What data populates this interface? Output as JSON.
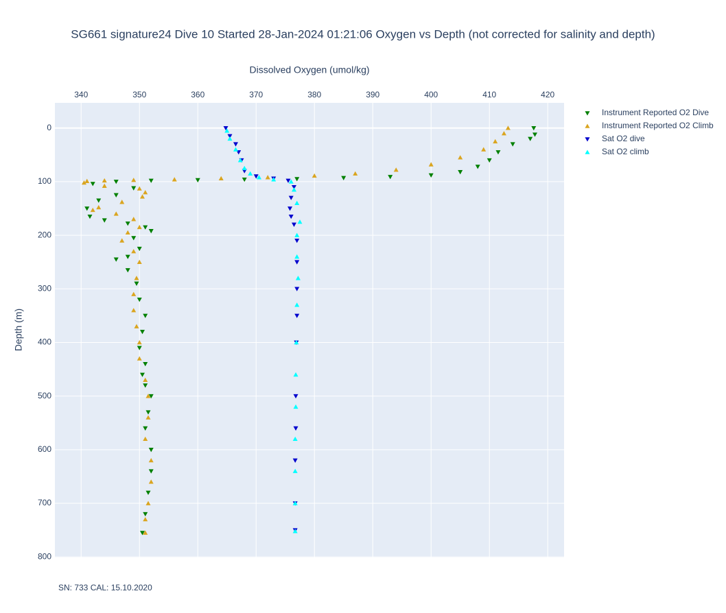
{
  "chart_data": {
    "type": "scatter",
    "title": "SG661 signature24 Dive 10 Started 28-Jan-2024 01:21:06  Oxygen vs Depth (not corrected for salinity and depth)",
    "x_label": "Dissolved Oxygen (umol/kg)",
    "y_label": "Depth (m)",
    "annotation": "SN: 733  CAL: 15.10.2020",
    "xlim": [
      335.5,
      422.8
    ],
    "ylim": [
      -47,
      801
    ],
    "y_reversed": true,
    "x_axis_side": "top",
    "xticks": [
      340,
      350,
      360,
      370,
      380,
      390,
      400,
      410,
      420
    ],
    "yticks": [
      0,
      100,
      200,
      300,
      400,
      500,
      600,
      700,
      800
    ],
    "grid": true,
    "legend_position": "right",
    "series": [
      {
        "name": "Instrument Reported O2 Dive",
        "color": "#008000",
        "marker": "triangle-down",
        "x": [
          417.6,
          417.8,
          417,
          414,
          411.5,
          410,
          408,
          405,
          400,
          393,
          385,
          377,
          368,
          360,
          352,
          346,
          342,
          349,
          346,
          343,
          341,
          341.5,
          344,
          348,
          351,
          352,
          349,
          350,
          348,
          346,
          348,
          349.5,
          350,
          351,
          350.5,
          350,
          351,
          350.5,
          351,
          352,
          351.5,
          351,
          352,
          352,
          351.5,
          351,
          350.5
        ],
        "y": [
          0,
          12,
          20,
          30,
          45,
          60,
          72,
          82,
          88,
          91,
          93,
          95,
          96,
          97,
          98,
          100,
          104,
          112,
          125,
          135,
          150,
          165,
          172,
          178,
          185,
          192,
          205,
          225,
          240,
          245,
          265,
          290,
          320,
          350,
          380,
          410,
          440,
          460,
          480,
          500,
          530,
          560,
          600,
          640,
          680,
          720,
          755
        ]
      },
      {
        "name": "Instrument Reported O2 Climb",
        "color": "#daa520",
        "marker": "triangle-up",
        "x": [
          413.2,
          412.5,
          411,
          409,
          405,
          400,
          394,
          387,
          380,
          372,
          364,
          356,
          349,
          344,
          341,
          340.5,
          344,
          350,
          351,
          350.5,
          347,
          343,
          342,
          346,
          349,
          350,
          348,
          347,
          349,
          350,
          349.5,
          349,
          349,
          349.5,
          350,
          350,
          351,
          351.5,
          351.5,
          351,
          352,
          352,
          351.5,
          351,
          351
        ],
        "y": [
          0,
          10,
          25,
          40,
          55,
          68,
          78,
          85,
          89,
          92,
          94,
          96,
          97,
          98,
          99,
          102,
          108,
          113,
          120,
          128,
          138,
          148,
          153,
          160,
          170,
          185,
          195,
          210,
          230,
          250,
          280,
          310,
          340,
          370,
          400,
          430,
          470,
          500,
          540,
          580,
          620,
          660,
          700,
          730,
          755
        ]
      },
      {
        "name": "Sat O2 dive",
        "color": "#0000cd",
        "marker": "triangle-down",
        "x": [
          364.8,
          365.5,
          366.5,
          367,
          367.5,
          368,
          370,
          373,
          375.5,
          376.5,
          376,
          375.8,
          376,
          376.5,
          377,
          377,
          377,
          377,
          376.9,
          376.8,
          376.8,
          376.7,
          376.7,
          376.7
        ],
        "y": [
          0,
          15,
          30,
          45,
          60,
          80,
          90,
          94,
          98,
          110,
          130,
          150,
          165,
          180,
          210,
          250,
          300,
          350,
          400,
          500,
          560,
          620,
          700,
          750
        ]
      },
      {
        "name": "Sat O2 climb",
        "color": "#00ffff",
        "marker": "triangle-up",
        "x": [
          365,
          365.5,
          366.5,
          367.3,
          368,
          369,
          370.5,
          373,
          376,
          376.5,
          377,
          377.5,
          377,
          377,
          377.2,
          377,
          376.9,
          376.8,
          376.8,
          376.7,
          376.7,
          376.7,
          376.7
        ],
        "y": [
          5,
          20,
          40,
          60,
          75,
          85,
          92,
          96,
          100,
          115,
          140,
          175,
          200,
          240,
          280,
          330,
          400,
          460,
          520,
          580,
          640,
          700,
          752
        ]
      }
    ]
  }
}
